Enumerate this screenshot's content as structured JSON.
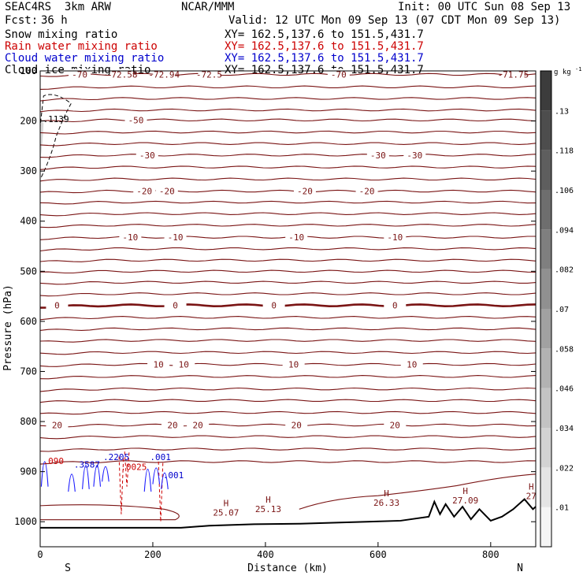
{
  "header": {
    "model": "SEAC4RS  3km ARW",
    "org": "NCAR/MMM",
    "init": "Init: 00 UTC Sun 08 Sep 13",
    "fcst_label": "Fcst:",
    "fcst_value": "36 h",
    "valid": "Valid: 12 UTC Mon 09 Sep 13 (07 CDT Mon 09 Sep 13)"
  },
  "fields": [
    {
      "name": "Snow mixing ratio",
      "xy": "XY= 162.5,137.6 to 151.5,431.7",
      "color": "#000000"
    },
    {
      "name": "Rain water mixing ratio",
      "xy": "XY= 162.5,137.6 to 151.5,431.7",
      "color": "#cc0000"
    },
    {
      "name": "Cloud water mixing ratio",
      "xy": "XY= 162.5,137.6 to 151.5,431.7",
      "color": "#0000cc"
    },
    {
      "name": "Cloud ice mixing ratio",
      "xy": "XY= 162.5,137.6 to 151.5,431.7",
      "color": "#000000"
    }
  ],
  "chart_data": {
    "type": "contour",
    "xlabel": "Distance (km)",
    "ylabel": "Pressure (hPa)",
    "xlim": [
      0,
      880
    ],
    "ylim": [
      1050,
      100
    ],
    "x_ticks": [
      0,
      200,
      400,
      600,
      800
    ],
    "y_ticks": [
      100,
      200,
      300,
      400,
      500,
      600,
      700,
      800,
      900,
      1000
    ],
    "y_tick_labels": [
      "100",
      "200",
      "300",
      "400",
      "500",
      "600",
      "700",
      "800",
      "900",
      "1000"
    ],
    "x_ends": {
      "left": "S",
      "right": "N"
    },
    "temperature_contours": [
      {
        "p": 107,
        "labels": [
          {
            "x": 70,
            "t": "-70"
          },
          {
            "x": 145,
            "t": "-72.58"
          },
          {
            "x": 220,
            "t": "-72.94"
          },
          {
            "x": 300,
            "t": "-72.5"
          },
          {
            "x": 530,
            "t": "-70"
          },
          {
            "x": 840,
            "t": "-71.75"
          }
        ]
      },
      {
        "p": 132,
        "labels": []
      },
      {
        "p": 155,
        "labels": []
      },
      {
        "p": 178,
        "labels": []
      },
      {
        "p": 198,
        "labels": [
          {
            "x": 170,
            "t": "-50"
          }
        ]
      },
      {
        "p": 222,
        "labels": []
      },
      {
        "p": 245,
        "labels": []
      },
      {
        "p": 268,
        "labels": [
          {
            "x": 190,
            "t": "-30"
          },
          {
            "x": 600,
            "t": "-30"
          },
          {
            "x": 665,
            "t": "-30"
          }
        ]
      },
      {
        "p": 292,
        "labels": []
      },
      {
        "p": 316,
        "labels": []
      },
      {
        "p": 340,
        "labels": [
          {
            "x": 185,
            "t": "-20"
          },
          {
            "x": 225,
            "t": "-20"
          },
          {
            "x": 470,
            "t": "-20"
          },
          {
            "x": 580,
            "t": "-20"
          }
        ]
      },
      {
        "p": 362,
        "labels": []
      },
      {
        "p": 385,
        "labels": []
      },
      {
        "p": 408,
        "labels": []
      },
      {
        "p": 432,
        "labels": [
          {
            "x": 160,
            "t": "-10"
          },
          {
            "x": 240,
            "t": "-10"
          },
          {
            "x": 455,
            "t": "-10"
          },
          {
            "x": 630,
            "t": "-10"
          }
        ]
      },
      {
        "p": 455,
        "labels": []
      },
      {
        "p": 478,
        "labels": []
      },
      {
        "p": 500,
        "labels": []
      },
      {
        "p": 522,
        "labels": []
      },
      {
        "p": 545,
        "labels": []
      },
      {
        "p": 568,
        "labels": [
          {
            "x": 30,
            "t": "0"
          },
          {
            "x": 240,
            "t": "0"
          },
          {
            "x": 415,
            "t": "0"
          },
          {
            "x": 630,
            "t": "0"
          }
        ]
      },
      {
        "p": 592,
        "labels": []
      },
      {
        "p": 615,
        "labels": []
      },
      {
        "p": 638,
        "labels": []
      },
      {
        "p": 662,
        "labels": []
      },
      {
        "p": 686,
        "labels": [
          {
            "x": 210,
            "t": "10"
          },
          {
            "x": 255,
            "t": "10"
          },
          {
            "x": 450,
            "t": "10"
          },
          {
            "x": 660,
            "t": "10"
          }
        ]
      },
      {
        "p": 710,
        "labels": []
      },
      {
        "p": 735,
        "labels": []
      },
      {
        "p": 758,
        "labels": []
      },
      {
        "p": 782,
        "labels": []
      },
      {
        "p": 807,
        "labels": [
          {
            "x": 455,
            "t": "20"
          },
          {
            "x": 630,
            "t": "20"
          },
          {
            "x": 235,
            "t": "20"
          },
          {
            "x": 280,
            "t": "20"
          },
          {
            "x": 30,
            "t": "20"
          }
        ]
      },
      {
        "p": 830,
        "labels": []
      },
      {
        "p": 855,
        "labels": []
      },
      {
        "p": 880,
        "labels": []
      }
    ],
    "pressure_maxima": [
      {
        "x": 330,
        "p": 985,
        "label": "25.07"
      },
      {
        "x": 405,
        "p": 978,
        "label": "25.13"
      },
      {
        "x": 615,
        "p": 965,
        "label": "26.33"
      },
      {
        "x": 755,
        "p": 960,
        "label": "27.09"
      },
      {
        "x": 872,
        "p": 952,
        "label": "27"
      }
    ],
    "cloud_labels": [
      {
        "x": 60,
        "p": 892,
        "label": ".3587",
        "color": "#0000cc"
      },
      {
        "x": 112,
        "p": 877,
        "label": ".2205",
        "color": "#0000cc"
      },
      {
        "x": 195,
        "p": 877,
        "label": ".001",
        "color": "#0000cc"
      },
      {
        "x": 218,
        "p": 913,
        "label": ".001",
        "color": "#0000cc"
      },
      {
        "x": 143,
        "p": 897,
        "label": ".0025",
        "color": "#cc0000"
      },
      {
        "x": 5,
        "p": 885,
        "label": ".090",
        "color": "#cc0000"
      },
      {
        "x": 5,
        "p": 202,
        "label": ".1139",
        "color": "#000000"
      }
    ],
    "colorbar": {
      "unit": "g kg",
      "unit_exp": "-1",
      "ticks": [
        ".01",
        ".022",
        ".034",
        ".046",
        ".058",
        ".07",
        ".082",
        ".094",
        ".106",
        ".118",
        ".13"
      ]
    }
  }
}
